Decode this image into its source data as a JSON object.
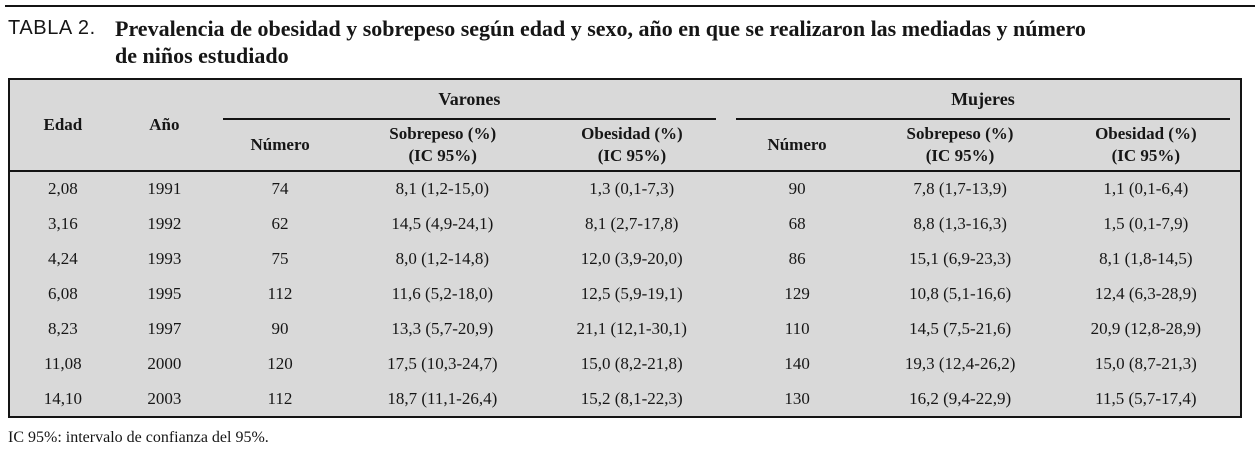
{
  "title": {
    "label": "TABLA 2.",
    "text_line1": "Prevalencia de obesidad y sobrepeso según edad y sexo, año en que se realizaron las mediadas y número",
    "text_line2": "de niños estudiado"
  },
  "table": {
    "groups": {
      "varones": "Varones",
      "mujeres": "Mujeres"
    },
    "columns": {
      "edad": "Edad",
      "ano": "Año"
    },
    "subheaders": {
      "numero": "Número",
      "sobrepeso": "Sobrepeso (%)",
      "obesidad": "Obesidad (%)",
      "ic": "(IC 95%)"
    },
    "rows": [
      [
        "2,08",
        "1991",
        "74",
        "8,1 (1,2-15,0)",
        "1,3 (0,1-7,3)",
        "90",
        "7,8 (1,7-13,9)",
        "1,1 (0,1-6,4)"
      ],
      [
        "3,16",
        "1992",
        "62",
        "14,5 (4,9-24,1)",
        "8,1 (2,7-17,8)",
        "68",
        "8,8 (1,3-16,3)",
        "1,5 (0,1-7,9)"
      ],
      [
        "4,24",
        "1993",
        "75",
        "8,0 (1,2-14,8)",
        "12,0 (3,9-20,0)",
        "86",
        "15,1 (6,9-23,3)",
        "8,1 (1,8-14,5)"
      ],
      [
        "6,08",
        "1995",
        "112",
        "11,6 (5,2-18,0)",
        "12,5 (5,9-19,1)",
        "129",
        "10,8 (5,1-16,6)",
        "12,4 (6,3-28,9)"
      ],
      [
        "8,23",
        "1997",
        "90",
        "13,3 (5,7-20,9)",
        "21,1 (12,1-30,1)",
        "110",
        "14,5 (7,5-21,6)",
        "20,9 (12,8-28,9)"
      ],
      [
        "11,08",
        "2000",
        "120",
        "17,5 (10,3-24,7)",
        "15,0 (8,2-21,8)",
        "140",
        "19,3 (12,4-26,2)",
        "15,0 (8,7-21,3)"
      ],
      [
        "14,10",
        "2003",
        "112",
        "18,7 (11,1-26,4)",
        "15,2 (8,1-22,3)",
        "130",
        "16,2 (9,4-22,9)",
        "11,5 (5,7-17,4)"
      ]
    ]
  },
  "footnote": "IC 95%: intervalo de confianza del 95%.",
  "colors": {
    "table_bg": "#d9d9d9",
    "rule": "#141414",
    "ink": "#161616"
  }
}
